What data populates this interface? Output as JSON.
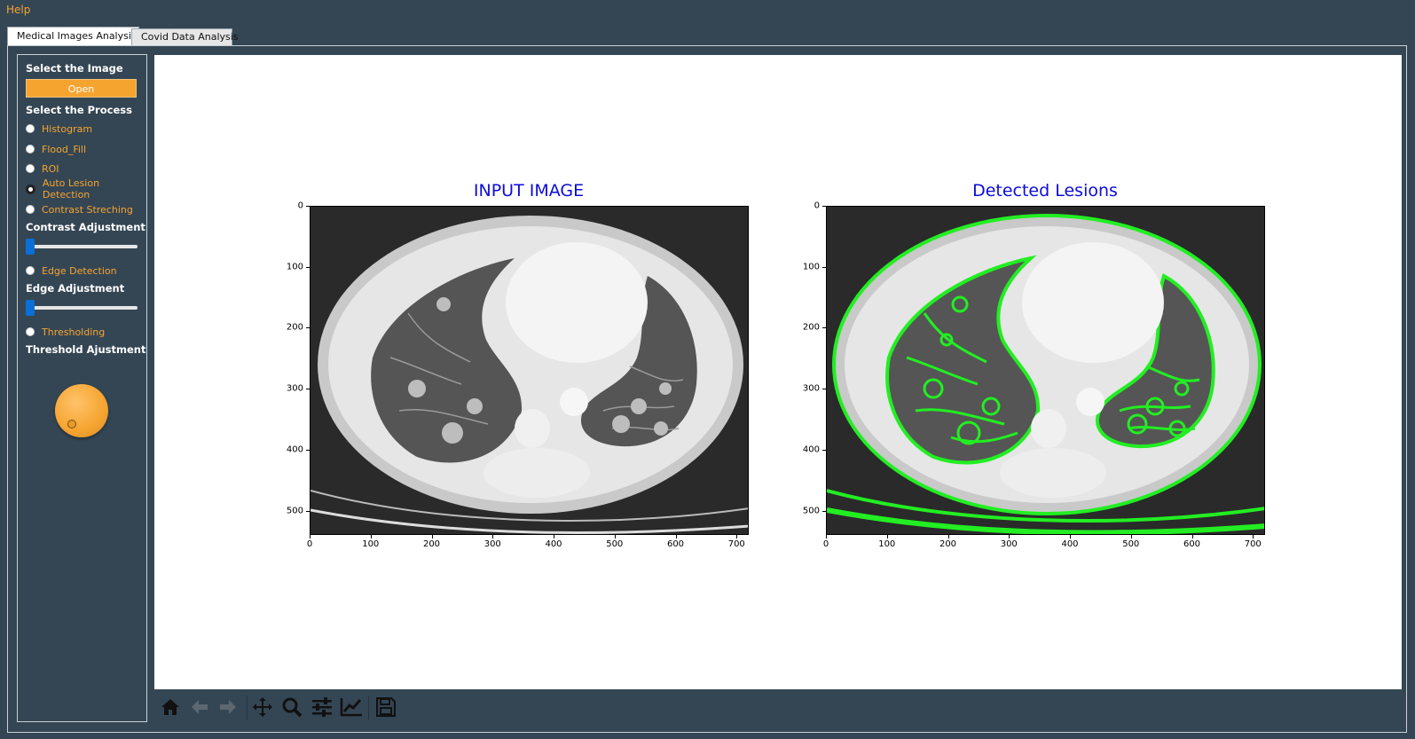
{
  "menu": {
    "help_label": "Help"
  },
  "tabs": [
    {
      "label": "Medical Images Analysis",
      "active": true
    },
    {
      "label": "Covid Data Analysis",
      "active": false
    }
  ],
  "sidebar": {
    "select_image_label": "Select the Image",
    "open_button_label": "Open",
    "select_process_label": "Select the Process",
    "processes": [
      {
        "label": "Histogram",
        "checked": false
      },
      {
        "label": "Flood_Fill",
        "checked": false
      },
      {
        "label": "ROI",
        "checked": false
      },
      {
        "label": "Auto Lesion Detection",
        "checked": true
      },
      {
        "label": "Contrast Streching",
        "checked": false
      }
    ],
    "contrast_adjustment_label": "Contrast Adjustment",
    "edge_detection_label": "Edge Detection",
    "edge_adjustment_label": "Edge Adjustment",
    "thresholding_label": "Thresholding",
    "threshold_adjustment_label": "Threshold Ajustment",
    "contrast_slider_value": 0,
    "edge_slider_value": 0
  },
  "plots": [
    {
      "title": "INPUT IMAGE"
    },
    {
      "title": "Detected Lesions"
    }
  ],
  "axes": {
    "x_ticks": [
      "0",
      "100",
      "200",
      "300",
      "400",
      "500",
      "600",
      "700"
    ],
    "y_ticks": [
      "0",
      "100",
      "200",
      "300",
      "400",
      "500"
    ],
    "x_range": [
      0,
      720
    ],
    "y_range": [
      0,
      540
    ]
  },
  "toolbar": {
    "icons": [
      "home-icon",
      "back-icon",
      "forward-icon",
      "pan-icon",
      "zoom-icon",
      "configure-subplots-icon",
      "edit-axis-icon",
      "save-icon"
    ]
  },
  "colors": {
    "background": "#344654",
    "accent": "#f5a430",
    "title_blue": "#0c0cd9",
    "lesion_green": "#22ee22",
    "slider_handle": "#0a6fd6"
  }
}
